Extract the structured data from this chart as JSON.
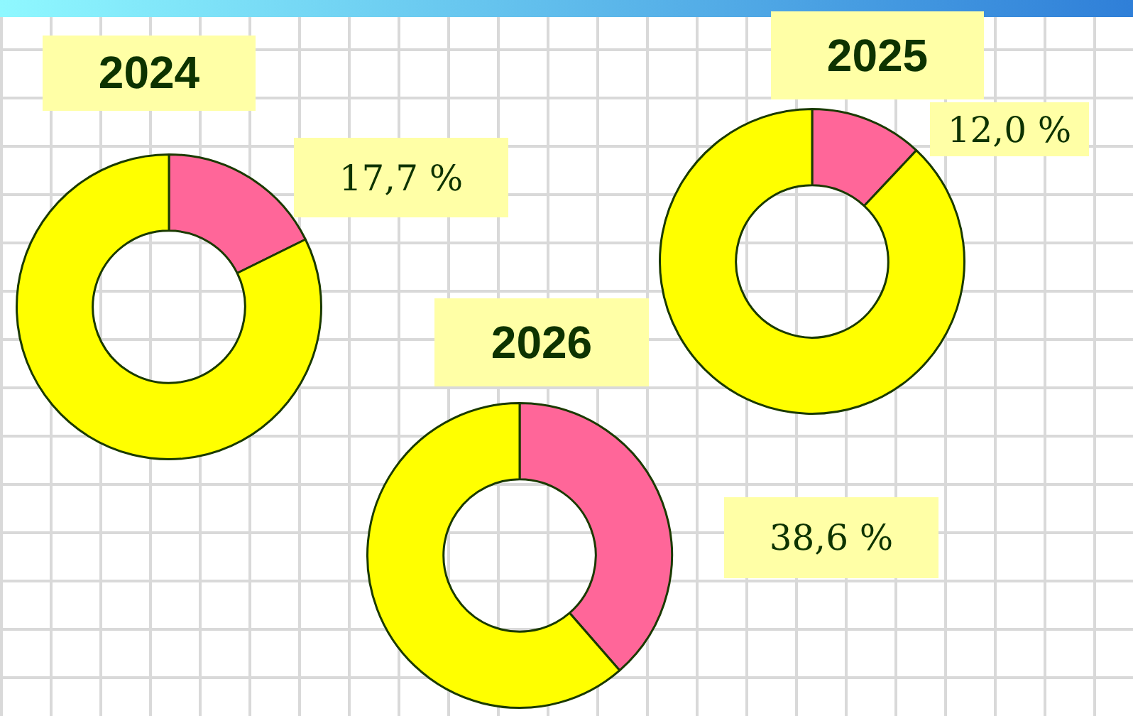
{
  "chart_data": [
    {
      "type": "donut",
      "title": "2024",
      "categories": [
        null,
        null
      ],
      "values": [
        17.7,
        82.3
      ],
      "colors": [
        "#ff6699",
        "#ffff00"
      ],
      "value_labels": [
        "17,7 %",
        null
      ]
    },
    {
      "type": "donut",
      "title": "2025",
      "categories": [
        null,
        null
      ],
      "values": [
        12.0,
        88.0
      ],
      "colors": [
        "#ff6699",
        "#ffff00"
      ],
      "value_labels": [
        "12,0 %",
        null
      ]
    },
    {
      "type": "donut",
      "title": "2026",
      "categories": [
        null,
        null
      ],
      "values": [
        38.6,
        61.4
      ],
      "colors": [
        "#ff6699",
        "#ffff00"
      ],
      "value_labels": [
        "38,6 %",
        null
      ]
    }
  ]
}
